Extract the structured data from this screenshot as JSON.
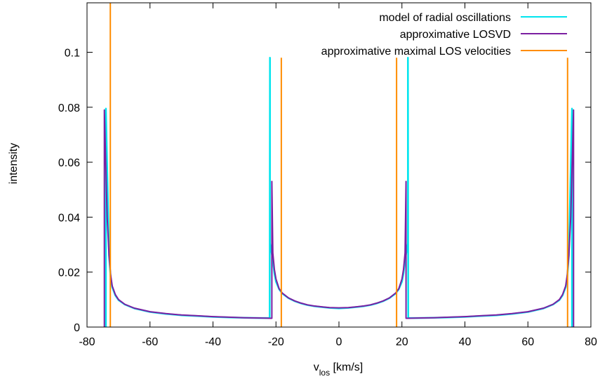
{
  "chart_data": {
    "type": "line",
    "title": "",
    "xlabel_main": "v",
    "xlabel_sub": "los",
    "xlabel_unit": " [km/s]",
    "ylabel": "intensity",
    "xlim": [
      -80,
      80
    ],
    "ylim": [
      0,
      0.118
    ],
    "xticks": [
      -80,
      -60,
      -40,
      -20,
      0,
      20,
      40,
      60,
      80
    ],
    "xtick_labels": [
      "-80",
      "-60",
      "-40",
      "-20",
      "0",
      "20",
      "40",
      "60",
      "80"
    ],
    "yticks": [
      0,
      0.02,
      0.04,
      0.06,
      0.08,
      0.1
    ],
    "ytick_labels": [
      "0",
      "0.02",
      "0.04",
      "0.06",
      "0.08",
      "0.1"
    ],
    "legend_position": "top-right",
    "series": [
      {
        "name": "model of radial oscillations",
        "color": "#00e5ee",
        "x": [
          -74.0,
          -74.0,
          -73.0,
          -72.5,
          -72.0,
          -71.0,
          -70.0,
          -68.0,
          -65.0,
          -60.0,
          -55.0,
          -50.0,
          -45.0,
          -40.0,
          -35.0,
          -30.0,
          -25.0,
          -22.0,
          -21.9,
          -21.9,
          -21.0,
          -20.5,
          -20.0,
          -19.0,
          -18.0,
          -16.0,
          -14.0,
          -12.0,
          -10.0,
          -8.0,
          -5.0,
          -3.0,
          0.0,
          3.0,
          5.0,
          8.0,
          10.0,
          12.0,
          14.0,
          16.0,
          18.0,
          19.0,
          20.0,
          20.5,
          21.0,
          21.9,
          21.9,
          22.0,
          25.0,
          30.0,
          35.0,
          40.0,
          45.0,
          50.0,
          55.0,
          60.0,
          65.0,
          68.0,
          70.0,
          71.0,
          72.0,
          72.5,
          73.0,
          74.0,
          74.0
        ],
        "y": [
          0,
          0.0795,
          0.026,
          0.018,
          0.0145,
          0.0115,
          0.0098,
          0.0082,
          0.0068,
          0.0055,
          0.0048,
          0.0043,
          0.004,
          0.0037,
          0.0035,
          0.0034,
          0.0033,
          0.0033,
          0.098,
          0.0305,
          0.0245,
          0.0195,
          0.0165,
          0.0138,
          0.0122,
          0.0105,
          0.0094,
          0.0086,
          0.008,
          0.0076,
          0.0072,
          0.007,
          0.0068,
          0.007,
          0.0072,
          0.0076,
          0.008,
          0.0086,
          0.0094,
          0.0105,
          0.0122,
          0.0138,
          0.0165,
          0.0195,
          0.0245,
          0.0305,
          0.098,
          0.0033,
          0.0033,
          0.0034,
          0.0035,
          0.0037,
          0.004,
          0.0043,
          0.0048,
          0.0055,
          0.0068,
          0.0082,
          0.0098,
          0.0115,
          0.0145,
          0.018,
          0.026,
          0.0795,
          0
        ]
      },
      {
        "name": "approximative LOSVD",
        "color": "#7b1fa2",
        "x": [
          -74.5,
          -74.5,
          -73.6,
          -73.0,
          -72.5,
          -72.0,
          -71.0,
          -70.0,
          -68.0,
          -65.0,
          -60.0,
          -55.0,
          -50.0,
          -45.0,
          -40.0,
          -35.0,
          -30.0,
          -25.0,
          -22.0,
          -21.3,
          -21.3,
          -21.0,
          -20.5,
          -20.0,
          -19.0,
          -18.0,
          -16.0,
          -14.0,
          -12.0,
          -10.0,
          -8.0,
          -5.0,
          -3.0,
          0.0,
          3.0,
          5.0,
          8.0,
          10.0,
          12.0,
          14.0,
          16.0,
          18.0,
          19.0,
          20.0,
          20.5,
          21.0,
          21.3,
          21.3,
          22.0,
          25.0,
          30.0,
          35.0,
          40.0,
          45.0,
          50.0,
          55.0,
          60.0,
          65.0,
          68.0,
          70.0,
          71.0,
          72.0,
          72.5,
          73.0,
          73.6,
          74.5,
          74.5
        ],
        "y": [
          0,
          0.079,
          0.04,
          0.026,
          0.019,
          0.015,
          0.0118,
          0.01,
          0.0083,
          0.0069,
          0.0056,
          0.0049,
          0.0044,
          0.0041,
          0.0038,
          0.0036,
          0.0034,
          0.0033,
          0.0032,
          0.0032,
          0.053,
          0.027,
          0.021,
          0.0175,
          0.014,
          0.0124,
          0.0106,
          0.0095,
          0.0087,
          0.0081,
          0.0077,
          0.0073,
          0.0071,
          0.007,
          0.0071,
          0.0073,
          0.0077,
          0.0081,
          0.0087,
          0.0095,
          0.0106,
          0.0124,
          0.014,
          0.0175,
          0.021,
          0.027,
          0.053,
          0.0032,
          0.0032,
          0.0033,
          0.0034,
          0.0036,
          0.0038,
          0.0041,
          0.0044,
          0.0049,
          0.0056,
          0.0069,
          0.0083,
          0.01,
          0.0118,
          0.015,
          0.019,
          0.026,
          0.04,
          0.079,
          0
        ]
      },
      {
        "name": "approximative maximal LOS velocities",
        "color": "#ff8c00",
        "vlines": [
          {
            "x": -72.6,
            "ymax": 0.118
          },
          {
            "x": -18.3,
            "ymax": 0.098
          },
          {
            "x": 18.3,
            "ymax": 0.098
          },
          {
            "x": 72.6,
            "ymax": 0.098
          }
        ]
      }
    ]
  }
}
